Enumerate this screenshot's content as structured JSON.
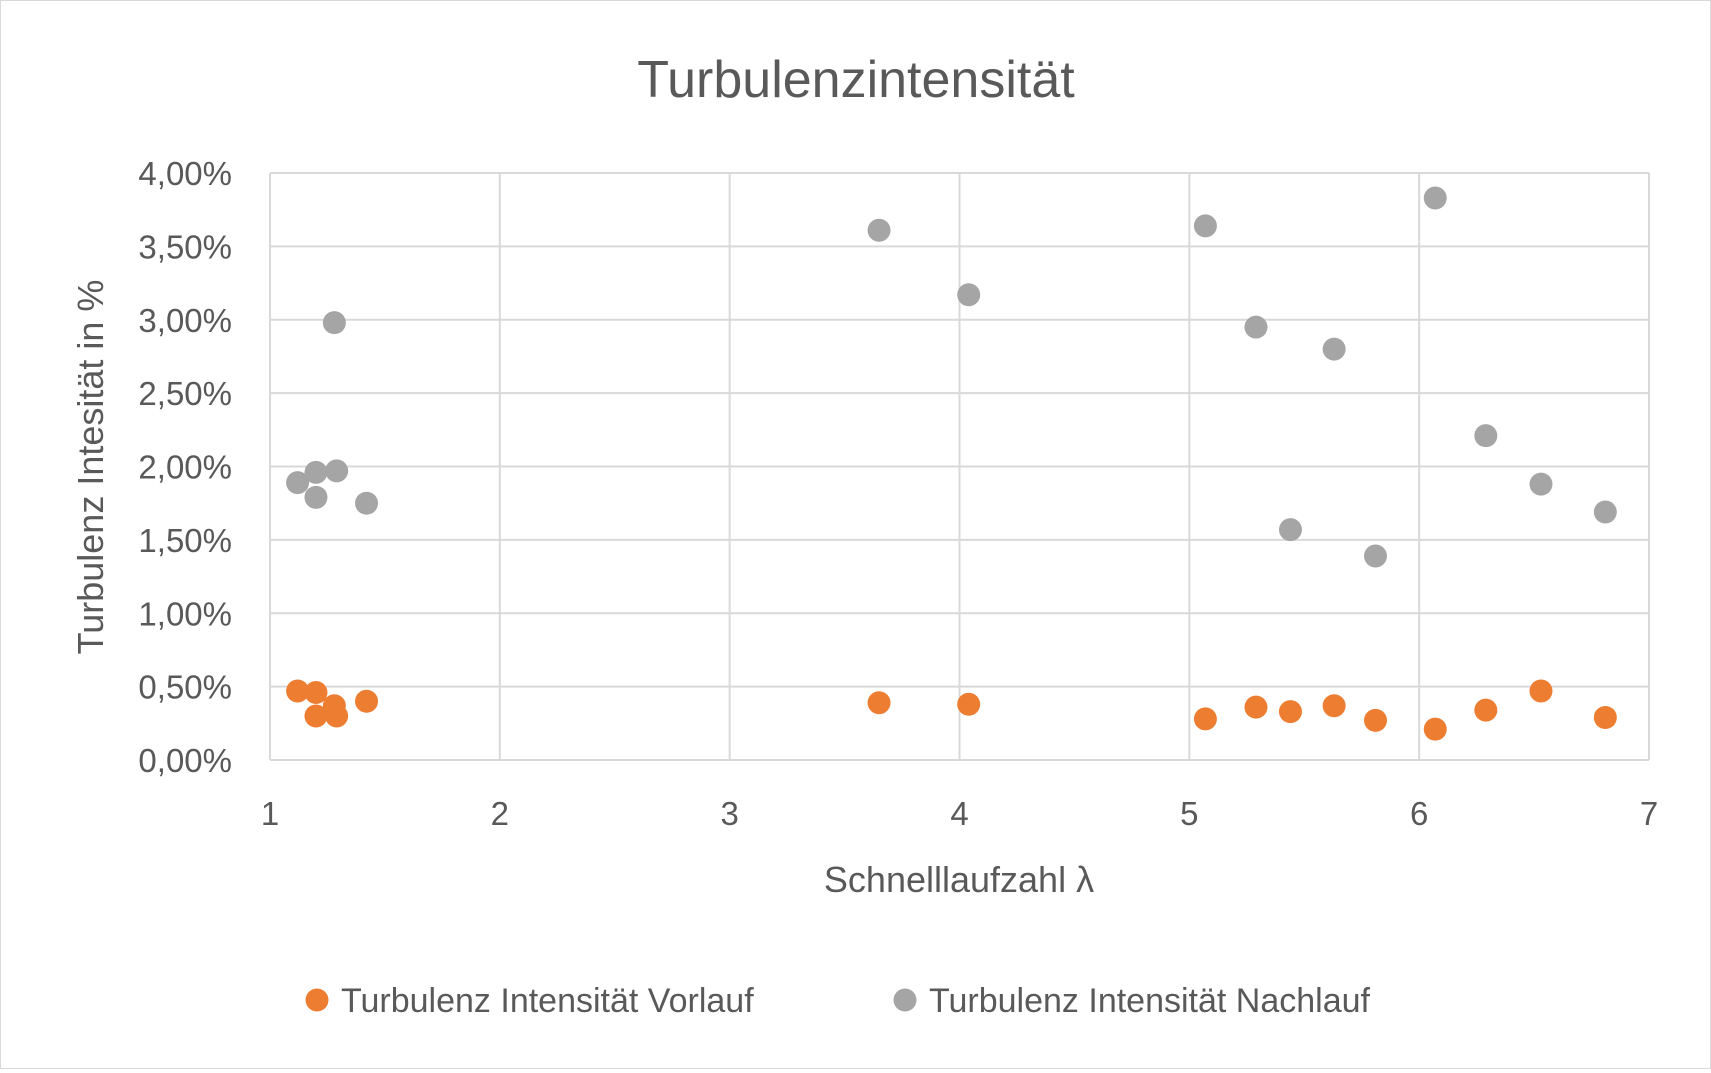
{
  "chart_data": {
    "type": "scatter",
    "title": "Turbulenzintensität",
    "xlabel": "Schnelllaufzahl λ",
    "ylabel": "Turbulenz Intesität in %",
    "xlim": [
      1,
      7
    ],
    "ylim": [
      0,
      0.04
    ],
    "x_ticks": [
      1,
      2,
      3,
      4,
      5,
      6,
      7
    ],
    "x_tick_labels": [
      "1",
      "2",
      "3",
      "4",
      "5",
      "6",
      "7"
    ],
    "y_ticks": [
      0,
      0.005,
      0.01,
      0.015,
      0.02,
      0.025,
      0.03,
      0.035,
      0.04
    ],
    "y_tick_labels": [
      "0,00%",
      "0,50%",
      "1,00%",
      "1,50%",
      "2,00%",
      "2,50%",
      "3,00%",
      "3,50%",
      "4,00%"
    ],
    "grid": true,
    "legend_position": "bottom",
    "series": [
      {
        "name": "Turbulenz Intensität Vorlauf",
        "color": "#ed7d31",
        "points": [
          [
            1.12,
            0.0047
          ],
          [
            1.2,
            0.0046
          ],
          [
            1.2,
            0.003
          ],
          [
            1.28,
            0.0037
          ],
          [
            1.29,
            0.003
          ],
          [
            1.42,
            0.004
          ],
          [
            3.65,
            0.0039
          ],
          [
            4.04,
            0.0038
          ],
          [
            5.07,
            0.0028
          ],
          [
            5.29,
            0.0036
          ],
          [
            5.44,
            0.0033
          ],
          [
            5.63,
            0.0037
          ],
          [
            5.81,
            0.0027
          ],
          [
            6.07,
            0.0021
          ],
          [
            6.29,
            0.0034
          ],
          [
            6.53,
            0.0047
          ],
          [
            6.81,
            0.0029
          ]
        ]
      },
      {
        "name": "Turbulenz Intensität Nachlauf",
        "color": "#a5a5a5",
        "points": [
          [
            1.12,
            0.0189
          ],
          [
            1.2,
            0.0196
          ],
          [
            1.2,
            0.0179
          ],
          [
            1.28,
            0.0298
          ],
          [
            1.29,
            0.0197
          ],
          [
            1.42,
            0.0175
          ],
          [
            3.65,
            0.0361
          ],
          [
            4.04,
            0.0317
          ],
          [
            5.07,
            0.0364
          ],
          [
            5.29,
            0.0295
          ],
          [
            5.44,
            0.0157
          ],
          [
            5.63,
            0.028
          ],
          [
            5.81,
            0.0139
          ],
          [
            6.07,
            0.0383
          ],
          [
            6.29,
            0.0221
          ],
          [
            6.53,
            0.0188
          ],
          [
            6.81,
            0.0169
          ]
        ]
      }
    ]
  }
}
